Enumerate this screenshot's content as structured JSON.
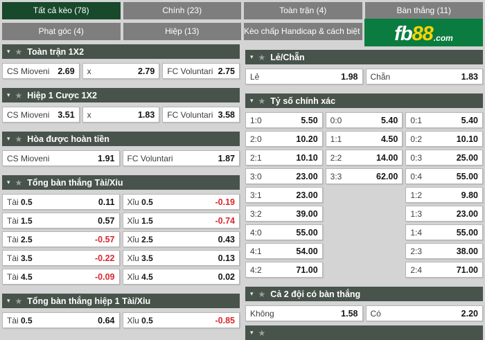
{
  "tabs": {
    "row1": [
      {
        "label": "Tất cả kèo (78)",
        "selected": true
      },
      {
        "label": "Chính (23)",
        "selected": false
      },
      {
        "label": "Toàn trận (4)",
        "selected": false
      },
      {
        "label": "Bàn thắng (11)",
        "selected": false
      }
    ],
    "row2": [
      {
        "label": "Phạt góc (4)",
        "selected": false
      },
      {
        "label": "Hiệp (13)",
        "selected": false
      },
      {
        "label": "Kèo chấp Handicap & cách biệt (3)",
        "selected": false
      }
    ]
  },
  "logo": {
    "fb": "fb",
    "n88": "88",
    "com": ".com"
  },
  "colors": {
    "selected_tab": "#17492a",
    "tab_gray": "#7e7e7e",
    "section_header": "#48544b",
    "logo_green": "#0b7c3f",
    "logo_yellow": "#ffd400",
    "negative_odds_red": "#d8262c"
  },
  "columns": {
    "left": [
      {
        "title": "Toàn trận 1X2",
        "cols": 3,
        "cells": [
          {
            "label": "CS Mioveni",
            "value": "2.69"
          },
          {
            "label": "x",
            "value": "2.79"
          },
          {
            "label": "FC Voluntari",
            "value": "2.75"
          }
        ]
      },
      {
        "title": "Hiệp 1 Cược 1X2",
        "cols": 3,
        "cells": [
          {
            "label": "CS Mioveni",
            "value": "3.51"
          },
          {
            "label": "x",
            "value": "1.83"
          },
          {
            "label": "FC Voluntari",
            "value": "3.58"
          }
        ]
      },
      {
        "title": "Hòa được hoàn tiền",
        "cols": 2,
        "cells": [
          {
            "label": "CS Mioveni",
            "value": "1.91"
          },
          {
            "label": "FC Voluntari",
            "value": "1.87"
          }
        ]
      },
      {
        "title": "Tổng bàn thắng Tài/Xỉu",
        "cols": 2,
        "cells": [
          {
            "label": "Tài",
            "line": "0.5",
            "value": "0.11"
          },
          {
            "label": "Xỉu",
            "line": "0.5",
            "value": "-0.19"
          },
          {
            "label": "Tài",
            "line": "1.5",
            "value": "0.57"
          },
          {
            "label": "Xỉu",
            "line": "1.5",
            "value": "-0.74"
          },
          {
            "label": "Tài",
            "line": "2.5",
            "value": "-0.57"
          },
          {
            "label": "Xỉu",
            "line": "2.5",
            "value": "0.43"
          },
          {
            "label": "Tài",
            "line": "3.5",
            "value": "-0.22"
          },
          {
            "label": "Xỉu",
            "line": "3.5",
            "value": "0.13"
          },
          {
            "label": "Tài",
            "line": "4.5",
            "value": "-0.09"
          },
          {
            "label": "Xỉu",
            "line": "4.5",
            "value": "0.02"
          }
        ]
      },
      {
        "title": "Tổng bàn thắng hiệp 1 Tài/Xỉu",
        "cols": 2,
        "cells": [
          {
            "label": "Tài",
            "line": "0.5",
            "value": "0.64"
          },
          {
            "label": "Xỉu",
            "line": "0.5",
            "value": "-0.85"
          }
        ]
      }
    ],
    "right": [
      {
        "title": "Lẻ/Chẵn",
        "cols": 2,
        "cells": [
          {
            "label": "Lẻ",
            "value": "1.98"
          },
          {
            "label": "Chẵn",
            "value": "1.83"
          }
        ]
      },
      {
        "title": "Tỷ số chính xác",
        "cols": 3,
        "cells": [
          {
            "label": "1:0",
            "value": "5.50"
          },
          {
            "label": "0:0",
            "value": "5.40"
          },
          {
            "label": "0:1",
            "value": "5.40"
          },
          {
            "label": "2:0",
            "value": "10.20"
          },
          {
            "label": "1:1",
            "value": "4.50"
          },
          {
            "label": "0:2",
            "value": "10.10"
          },
          {
            "label": "2:1",
            "value": "10.10"
          },
          {
            "label": "2:2",
            "value": "14.00"
          },
          {
            "label": "0:3",
            "value": "25.00"
          },
          {
            "label": "3:0",
            "value": "23.00"
          },
          {
            "label": "3:3",
            "value": "62.00"
          },
          {
            "label": "0:4",
            "value": "55.00"
          },
          {
            "label": "3:1",
            "value": "23.00"
          },
          null,
          {
            "label": "1:2",
            "value": "9.80"
          },
          {
            "label": "3:2",
            "value": "39.00"
          },
          null,
          {
            "label": "1:3",
            "value": "23.00"
          },
          {
            "label": "4:0",
            "value": "55.00"
          },
          null,
          {
            "label": "1:4",
            "value": "55.00"
          },
          {
            "label": "4:1",
            "value": "54.00"
          },
          null,
          {
            "label": "2:3",
            "value": "38.00"
          },
          {
            "label": "4:2",
            "value": "71.00"
          },
          null,
          {
            "label": "2:4",
            "value": "71.00"
          }
        ]
      },
      {
        "title": "Cả 2 đội có bàn thắng",
        "cols": 2,
        "cells": [
          {
            "label": "Không",
            "value": "1.58"
          },
          {
            "label": "Có",
            "value": "2.20"
          }
        ]
      },
      {
        "title": "",
        "cols": 2,
        "partial": true,
        "cells": []
      }
    ]
  }
}
